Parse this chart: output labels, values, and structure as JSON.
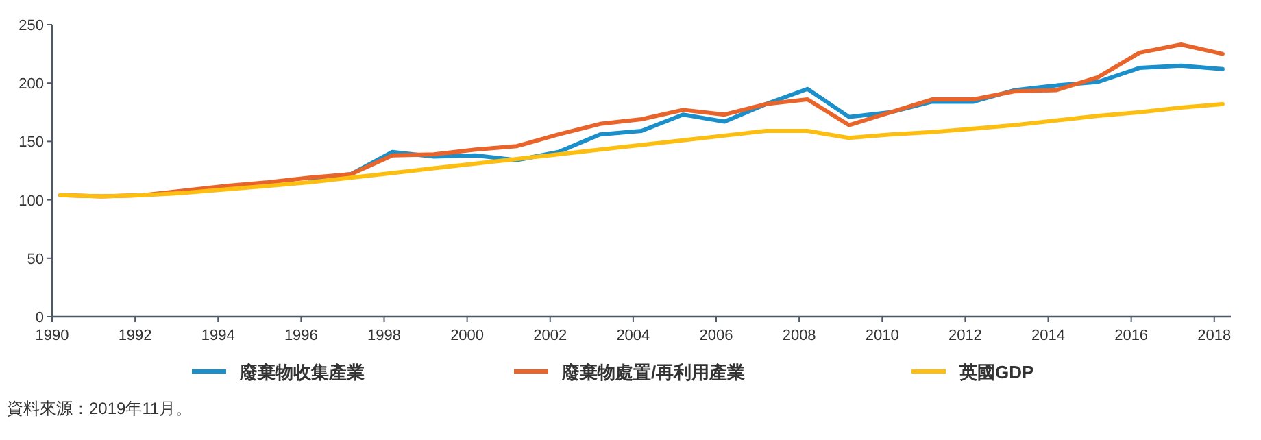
{
  "chart_data": {
    "type": "line",
    "x": [
      1990.2,
      1991.2,
      1992.2,
      1993.2,
      1994.2,
      1995.2,
      1996.2,
      1997.2,
      1998.2,
      1999.2,
      2000.2,
      2001.2,
      2002.2,
      2003.2,
      2004.2,
      2005.2,
      2006.2,
      2007.2,
      2008.2,
      2009.2,
      2010.2,
      2011.2,
      2012.2,
      2013.2,
      2014.2,
      2015.2,
      2016.2,
      2017.2,
      2018.2
    ],
    "series": [
      {
        "name": "廢棄物收集產業",
        "color": "#1a8fc9",
        "values": [
          null,
          null,
          null,
          null,
          null,
          null,
          118,
          122,
          141,
          137,
          138,
          134,
          141,
          156,
          159,
          173,
          167,
          182,
          195,
          171,
          175,
          184,
          184,
          194,
          198,
          201,
          213,
          215,
          212
        ]
      },
      {
        "name": "廢棄物處置/再利用產業",
        "color": "#e8642a",
        "values": [
          104,
          103,
          104,
          108,
          112,
          115,
          119,
          122,
          138,
          139,
          143,
          146,
          156,
          165,
          169,
          177,
          173,
          182,
          186,
          164,
          175,
          186,
          186,
          193,
          194,
          205,
          226,
          233,
          225
        ]
      },
      {
        "name": "英國GDP",
        "color": "#fdbe12",
        "values": [
          104,
          103,
          104,
          106,
          109,
          112,
          115,
          119,
          123,
          127,
          131,
          135,
          139,
          143,
          147,
          151,
          155,
          159,
          159,
          153,
          156,
          158,
          161,
          164,
          168,
          172,
          175,
          179,
          182
        ]
      }
    ],
    "xlim": [
      1990,
      2018.4
    ],
    "xticks": [
      1990,
      1992,
      1994,
      1996,
      1998,
      2000,
      2002,
      2004,
      2006,
      2008,
      2010,
      2012,
      2014,
      2016,
      2018
    ],
    "ylim": [
      0,
      250
    ],
    "yticks": [
      0,
      50,
      100,
      150,
      200,
      250
    ],
    "legend": "bottom",
    "annotations": [
      "資料來源：2019年11月。"
    ]
  }
}
